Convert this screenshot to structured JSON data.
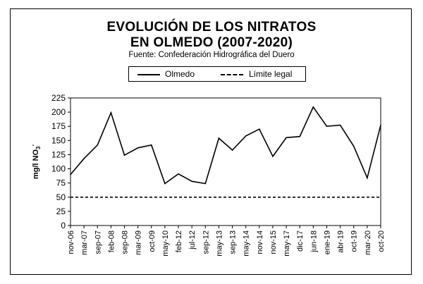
{
  "chart_data": {
    "type": "line",
    "title_line1": "EVOLUCIÓN DE LOS NITRATOS",
    "title_line2": "EN OLMEDO (2007-2020)",
    "subtitle": "Fuente: Confederación Hidrográfica del Duero",
    "ylabel": "mg/l NO",
    "ylabel_sub": "3",
    "ylabel_sup": "-",
    "ylim": [
      0,
      225
    ],
    "yticks": [
      0,
      25,
      50,
      75,
      100,
      125,
      150,
      175,
      200,
      225
    ],
    "x_categories": [
      "nov-06",
      "mar-07",
      "sep-07",
      "feb-08",
      "sep-08",
      "mar-09",
      "oct-09",
      "may-10",
      "feb-12",
      "jul-12",
      "sep-12",
      "may-13",
      "sep-13",
      "may-14",
      "nov-14",
      "nov-15",
      "may-17",
      "dic-17",
      "jun-18",
      "ene-19",
      "abr-19",
      "oct-19",
      "mar-20",
      "oct-20"
    ],
    "series": [
      {
        "name": "Olmedo",
        "style": "solid",
        "color": "#000000",
        "values": [
          90,
          118,
          142,
          199,
          124,
          137,
          142,
          74,
          91,
          78,
          74,
          154,
          133,
          158,
          170,
          122,
          155,
          157,
          209,
          175,
          177,
          140,
          84,
          177
        ]
      },
      {
        "name": "Límite legal",
        "style": "dashed",
        "color": "#000000",
        "constant": 50
      }
    ],
    "grid": false,
    "legend_position": "top"
  }
}
